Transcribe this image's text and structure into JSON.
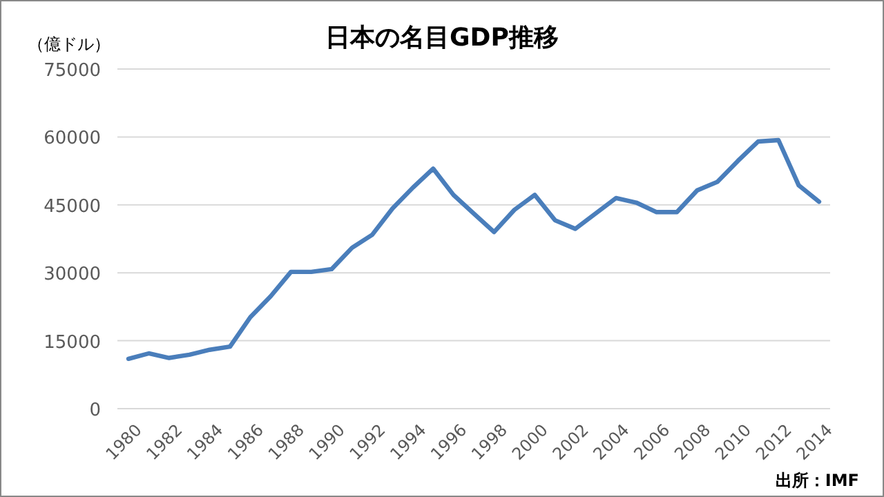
{
  "chart_data": {
    "type": "line",
    "title": "日本の名目GDP推移",
    "ylabel": "（億ドル）",
    "categories": [
      "1980",
      null,
      "1982",
      null,
      "1984",
      null,
      "1986",
      null,
      "1988",
      null,
      "1990",
      null,
      "1992",
      null,
      "1994",
      null,
      "1996",
      null,
      "1998",
      null,
      "2000",
      null,
      "2002",
      null,
      "2004",
      null,
      "2006",
      null,
      "2008",
      null,
      "2010",
      null,
      "2012",
      null,
      "2014"
    ],
    "series": [
      {
        "color": "#4a7ebb",
        "values": [
          11000,
          12200,
          11200,
          11900,
          13000,
          13700,
          20200,
          24800,
          30200,
          30200,
          30800,
          35500,
          38400,
          44200,
          48800,
          53000,
          47200,
          43100,
          39000,
          43900,
          47200,
          41600,
          39700,
          43100,
          46500,
          45500,
          43400,
          43400,
          48200,
          50100,
          54700,
          59000,
          59300,
          49300,
          45700
        ]
      }
    ],
    "ylim": [
      0,
      75000
    ],
    "yticks": [
      0,
      15000,
      30000,
      45000,
      60000,
      75000
    ],
    "grid": "y",
    "marker": "none",
    "line_style": "solid",
    "annotations": [
      "出所：IMF"
    ]
  }
}
